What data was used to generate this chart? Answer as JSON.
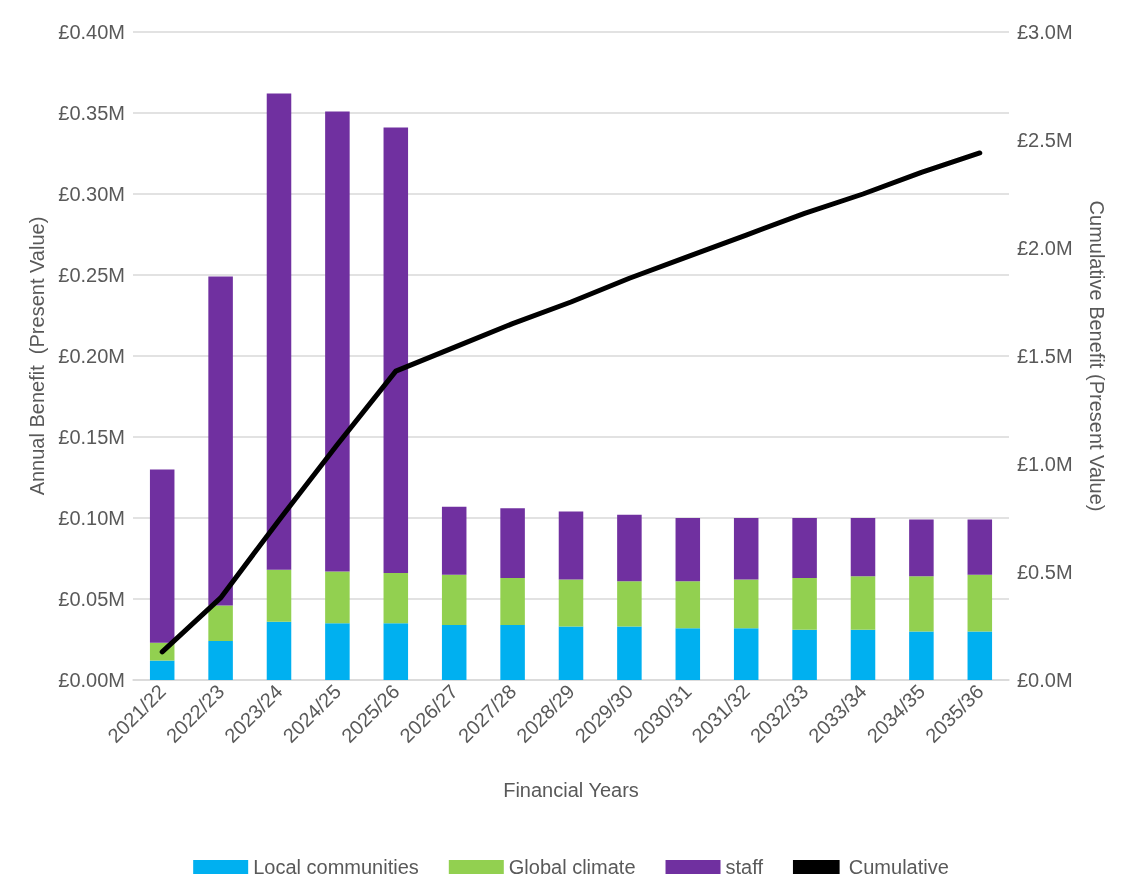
{
  "chart_data": {
    "type": "bar",
    "stacked": true,
    "xlabel": "Financial Years",
    "ylabel": "Annual Benefit  (Present Value)",
    "y2label": "Cumulative Benefit (Present Value)",
    "categories": [
      "2021/22",
      "2022/23",
      "2023/24",
      "2024/25",
      "2025/26",
      "2026/27",
      "2027/28",
      "2028/29",
      "2029/30",
      "2030/31",
      "2031/32",
      "2032/33",
      "2033/34",
      "2034/35",
      "2035/36"
    ],
    "series": [
      {
        "name": "Local communities",
        "color": "#00b0f0",
        "values": [
          0.012,
          0.024,
          0.036,
          0.035,
          0.035,
          0.034,
          0.034,
          0.033,
          0.033,
          0.032,
          0.032,
          0.031,
          0.031,
          0.03,
          0.03
        ]
      },
      {
        "name": "Global climate",
        "color": "#92d050",
        "values": [
          0.011,
          0.022,
          0.032,
          0.032,
          0.031,
          0.031,
          0.029,
          0.029,
          0.028,
          0.029,
          0.03,
          0.032,
          0.033,
          0.034,
          0.035
        ]
      },
      {
        "name": "staff",
        "color": "#7030a0",
        "values": [
          0.107,
          0.203,
          0.294,
          0.284,
          0.275,
          0.042,
          0.043,
          0.042,
          0.041,
          0.039,
          0.038,
          0.037,
          0.036,
          0.035,
          0.034
        ]
      },
      {
        "name": "Cumulative",
        "type": "line",
        "axis": "y2",
        "color": "#000000",
        "values": [
          0.13,
          0.38,
          0.74,
          1.09,
          1.43,
          1.54,
          1.65,
          1.75,
          1.86,
          1.96,
          2.06,
          2.16,
          2.25,
          2.35,
          2.44
        ]
      }
    ],
    "ylim": [
      0,
      0.4
    ],
    "yticks": [
      {
        "value": 0,
        "label": "£0.00M"
      },
      {
        "value": 0.05,
        "label": "£0.05M"
      },
      {
        "value": 0.1,
        "label": "£0.10M"
      },
      {
        "value": 0.15,
        "label": "£0.15M"
      },
      {
        "value": 0.2,
        "label": "£0.20M"
      },
      {
        "value": 0.25,
        "label": "£0.25M"
      },
      {
        "value": 0.3,
        "label": "£0.30M"
      },
      {
        "value": 0.35,
        "label": "£0.35M"
      },
      {
        "value": 0.4,
        "label": "£0.40M"
      }
    ],
    "y2lim": [
      0,
      3
    ],
    "y2ticks": [
      {
        "value": 0,
        "label": "£0.0M"
      },
      {
        "value": 0.5,
        "label": "£0.5M"
      },
      {
        "value": 1,
        "label": "£1.0M"
      },
      {
        "value": 1.5,
        "label": "£1.5M"
      },
      {
        "value": 2,
        "label": "£2.0M"
      },
      {
        "value": 2.5,
        "label": "£2.5M"
      },
      {
        "value": 3,
        "label": "£3.0M"
      }
    ],
    "grid": "y",
    "legend": "bottom",
    "marker": "none",
    "line_style": "solid"
  }
}
